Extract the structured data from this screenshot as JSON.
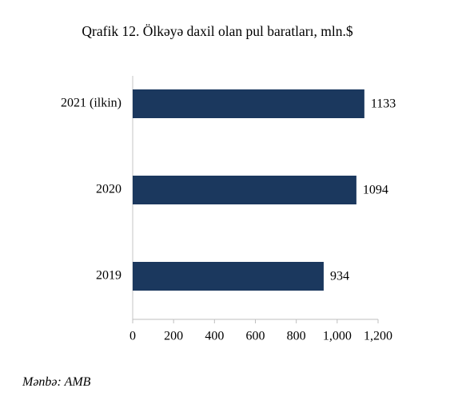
{
  "chart_data": {
    "type": "barh",
    "title": "Qrafik 12. Ölkəyə daxil olan pul baratları, mln.$",
    "categories": [
      "2019",
      "2020",
      "2021 (ilkin)"
    ],
    "values": [
      934,
      1094,
      1133
    ],
    "color": "#1b385e",
    "xlim": [
      0,
      1200
    ],
    "xticks": [
      0,
      200,
      400,
      600,
      800,
      {
        "value": 1000,
        "label": "1,000"
      },
      {
        "value": 1200,
        "label": "1,200"
      }
    ],
    "grid": false
  },
  "source": "Mənbə: AMB"
}
